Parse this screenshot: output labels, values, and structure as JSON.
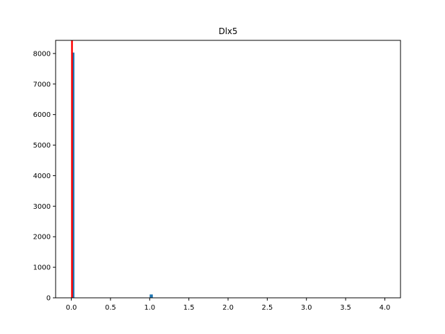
{
  "chart_data": {
    "type": "bar",
    "title": "Dlx5",
    "xlabel": "",
    "ylabel": "",
    "xlim": [
      -0.2,
      4.2
    ],
    "ylim": [
      0,
      8430
    ],
    "xticks": [
      0.0,
      0.5,
      1.0,
      1.5,
      2.0,
      2.5,
      3.0,
      3.5,
      4.0
    ],
    "xtick_labels": [
      "0.0",
      "0.5",
      "1.0",
      "1.5",
      "2.0",
      "2.5",
      "3.0",
      "3.5",
      "4.0"
    ],
    "yticks": [
      0,
      1000,
      2000,
      3000,
      4000,
      5000,
      6000,
      7000,
      8000
    ],
    "ytick_labels": [
      "0",
      "1000",
      "2000",
      "3000",
      "4000",
      "5000",
      "6000",
      "7000",
      "8000"
    ],
    "grid": false,
    "bin_width": 0.04,
    "bins": [
      {
        "x": 0.0,
        "value": 8030
      },
      {
        "x": 1.0,
        "value": 110
      }
    ],
    "vline": {
      "x": 0.0
    },
    "colors": {
      "bar": "#1f77b4",
      "vline": "#ff0000"
    }
  }
}
